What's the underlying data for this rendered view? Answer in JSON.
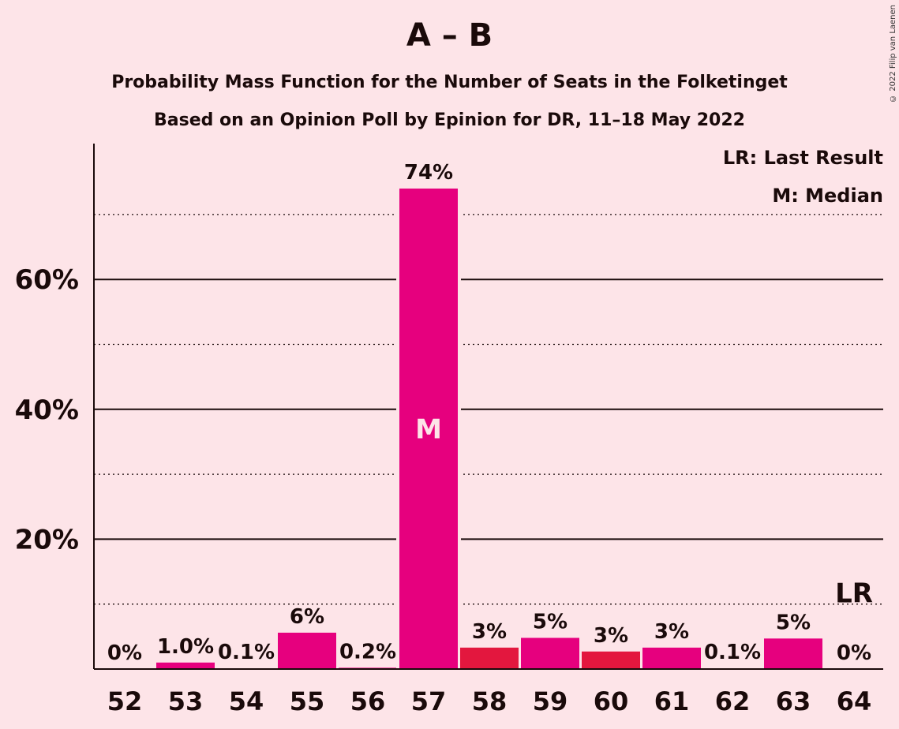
{
  "header": {
    "title": "A – B",
    "subtitle1": "Probability Mass Function for the Number of Seats in the Folketinget",
    "subtitle2": "Based on an Opinion Poll by Epinion for DR, 11–18 May 2022",
    "copyright": "© 2022 Filip van Laenen"
  },
  "legend": {
    "lr": "LR: Last Result",
    "m": "M: Median"
  },
  "chart_data": {
    "type": "bar",
    "categories": [
      "52",
      "53",
      "54",
      "55",
      "56",
      "57",
      "58",
      "59",
      "60",
      "61",
      "62",
      "63",
      "64"
    ],
    "values": [
      0,
      1.0,
      0.1,
      5.6,
      0.2,
      74,
      3.3,
      4.8,
      2.7,
      3.3,
      0.1,
      4.7,
      0
    ],
    "labels": [
      "0%",
      "1.0%",
      "0.1%",
      "6%",
      "0.2%",
      "74%",
      "3%",
      "5%",
      "3%",
      "3%",
      "0.1%",
      "5%",
      "0%"
    ],
    "colors": [
      "#E6007E",
      "#E6007E",
      "#E6007E",
      "#E6007E",
      "#E6007E",
      "#E6007E",
      "#E3173E",
      "#E6007E",
      "#E3173E",
      "#E6007E",
      "#E6007E",
      "#E6007E",
      "#E6007E"
    ],
    "yticks": [
      20,
      40,
      60
    ],
    "ytick_labels": [
      "20%",
      "40%",
      "60%"
    ],
    "dotted": [
      10,
      30,
      50,
      70
    ],
    "ylim": [
      0,
      80
    ],
    "median_index": 5,
    "median_label": "M",
    "last_result_index": 12,
    "last_result_label": "LR"
  }
}
